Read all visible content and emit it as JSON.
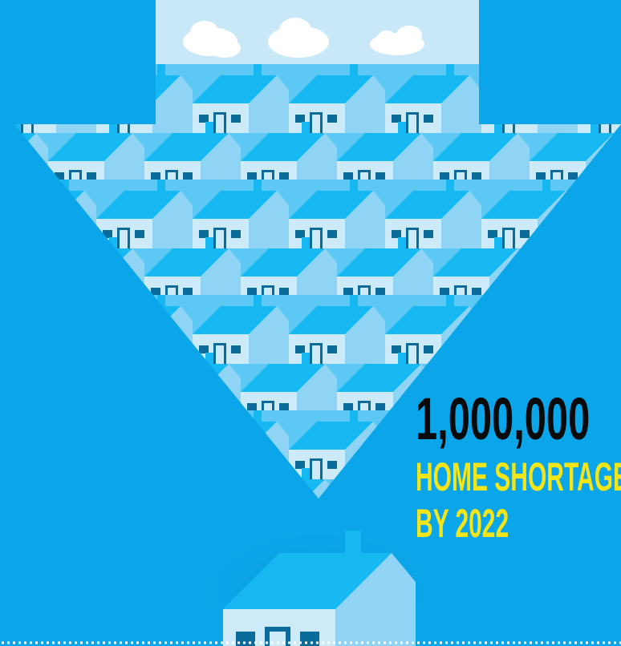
{
  "headline": {
    "number": "1,000,000",
    "line1": "HOME SHORTAGE",
    "line2": "BY 2022"
  }
}
